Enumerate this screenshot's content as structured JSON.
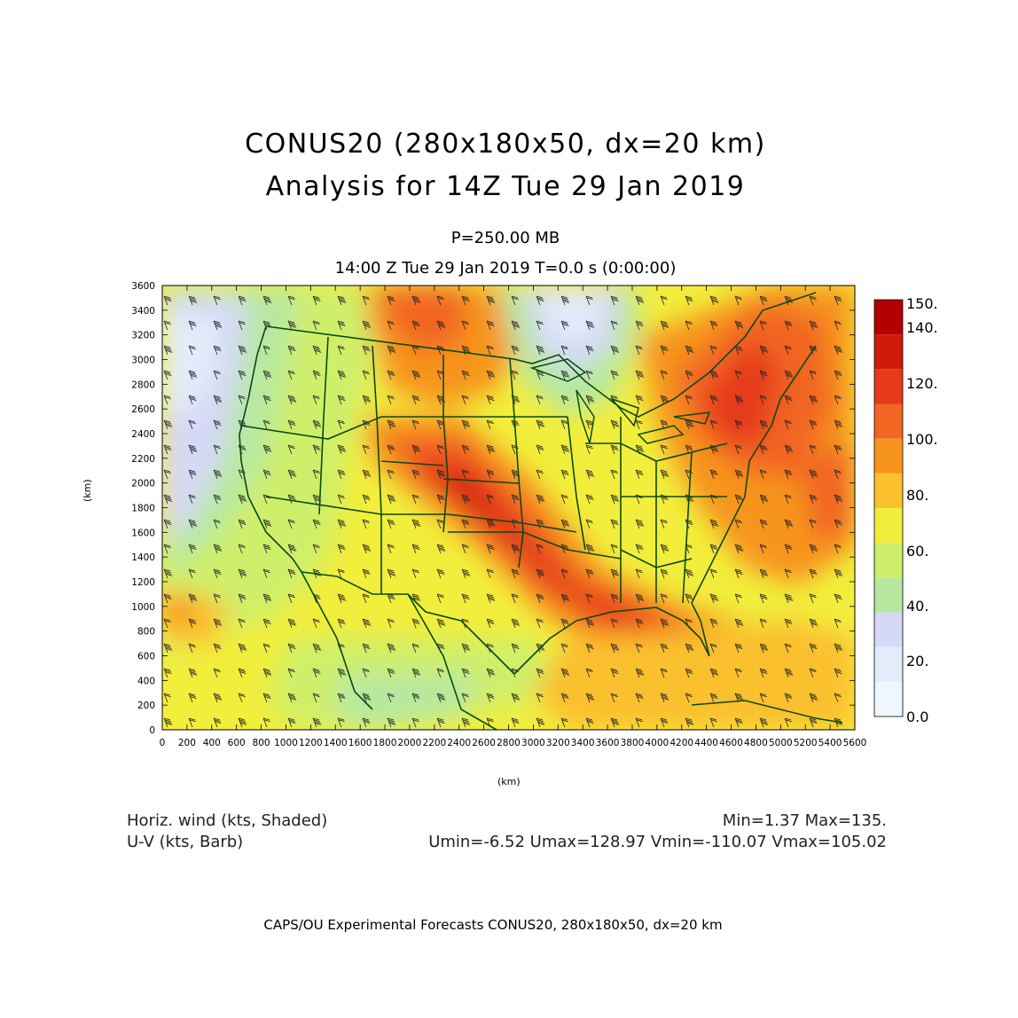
{
  "titles": {
    "line1": "CONUS20 (280x180x50, dx=20 km)",
    "line2": "Analysis for 14Z Tue 29 Jan 2019",
    "level": "P=250.00 MB",
    "time": "14:00 Z Tue 29 Jan 2019   T=0.0 s (0:00:00)"
  },
  "axes": {
    "x_label": "(km)",
    "y_label": "(km)",
    "x_ticks": [
      "0",
      "200",
      "400",
      "600",
      "800",
      "1000",
      "1200",
      "1400",
      "1600",
      "1800",
      "2000",
      "2200",
      "2400",
      "2600",
      "2800",
      "3000",
      "3200",
      "3400",
      "3600",
      "3800",
      "4000",
      "4200",
      "4400",
      "4600",
      "4800",
      "5000",
      "5200",
      "5400",
      "5600"
    ],
    "y_ticks": [
      "0",
      "200",
      "400",
      "600",
      "800",
      "1000",
      "1200",
      "1400",
      "1600",
      "1800",
      "2000",
      "2200",
      "2400",
      "2600",
      "2800",
      "3000",
      "3200",
      "3400",
      "3600"
    ],
    "x_range": [
      0,
      5600
    ],
    "y_range": [
      0,
      3600
    ]
  },
  "colorbar": {
    "labels": [
      "150.",
      "140.",
      "120.",
      "100.",
      "80.",
      "60.",
      "40.",
      "20.",
      "0.0"
    ],
    "colors": [
      "#b30000",
      "#d01a0a",
      "#e63a1a",
      "#f26522",
      "#f7941d",
      "#fbc02d",
      "#f0ee3a",
      "#cfef6a",
      "#b7e8a0",
      "#d6d8f8",
      "#e3ecfa",
      "#eef7fd"
    ]
  },
  "footer": {
    "left1": "Horiz. wind (kts, Shaded)",
    "left2": "U-V (kts, Barb)",
    "right1": "Min=1.37  Max=135.",
    "right2": "Umin=-6.52  Umax=128.97  Vmin=-110.07  Vmax=105.02",
    "credit": "CAPS/OU Experimental Forecasts   CONUS20, 280x180x50, dx=20 km"
  },
  "field": {
    "variable": "Horizontal wind speed",
    "units": "kts",
    "min": 1.37,
    "max": 135
  }
}
